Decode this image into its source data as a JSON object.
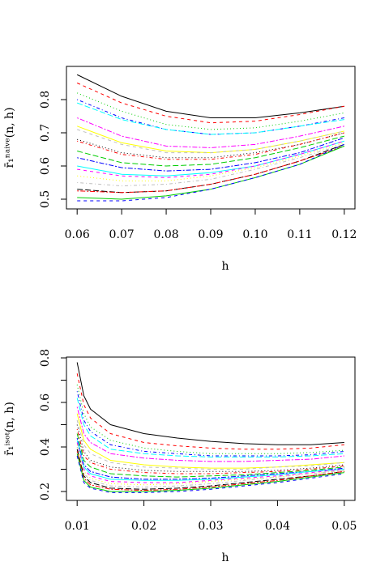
{
  "chart_data": [
    {
      "type": "line",
      "xlabel": "h",
      "ylabel": "r̄₁ⁿᵃⁱᵛᵉ(n, h)",
      "x": [
        0.06,
        0.07,
        0.08,
        0.09,
        0.1,
        0.11,
        0.12
      ],
      "xlim": [
        0.0576,
        0.1224
      ],
      "ylim": [
        0.4707,
        0.9
      ],
      "xticks": [
        0.06,
        0.07,
        0.08,
        0.09,
        {
          "value": 0.1,
          "label": "0.10"
        },
        0.11,
        0.12
      ],
      "yticks": [
        0.5,
        0.6,
        0.7,
        0.8
      ],
      "series": [
        {
          "color": "#000000",
          "dash": "solid",
          "values": [
            0.875,
            0.81,
            0.765,
            0.745,
            0.745,
            0.76,
            0.78
          ]
        },
        {
          "color": "#ff0000",
          "dash": "dashed",
          "values": [
            0.85,
            0.79,
            0.75,
            0.73,
            0.735,
            0.755,
            0.78
          ]
        },
        {
          "color": "#00cd00",
          "dash": "dotted",
          "values": [
            0.82,
            0.765,
            0.725,
            0.71,
            0.715,
            0.735,
            0.76
          ]
        },
        {
          "color": "#0000ff",
          "dash": "dotdash",
          "values": [
            0.8,
            0.745,
            0.71,
            0.695,
            0.7,
            0.72,
            0.745
          ]
        },
        {
          "color": "#00ffff",
          "dash": "longdash",
          "values": [
            0.79,
            0.74,
            0.71,
            0.695,
            0.7,
            0.72,
            0.74
          ]
        },
        {
          "color": "#ff00ff",
          "dash": "twodash",
          "values": [
            0.745,
            0.69,
            0.66,
            0.655,
            0.665,
            0.69,
            0.72
          ]
        },
        {
          "color": "#ffff00",
          "dash": "solid",
          "values": [
            0.72,
            0.67,
            0.645,
            0.64,
            0.65,
            0.675,
            0.705
          ]
        },
        {
          "color": "#bebebe",
          "dash": "dashed",
          "values": [
            0.71,
            0.665,
            0.64,
            0.64,
            0.65,
            0.675,
            0.705
          ]
        },
        {
          "color": "#000000",
          "dash": "dotted",
          "values": [
            0.68,
            0.64,
            0.625,
            0.625,
            0.64,
            0.665,
            0.7
          ]
        },
        {
          "color": "#ff0000",
          "dash": "dotdash",
          "values": [
            0.675,
            0.635,
            0.62,
            0.62,
            0.635,
            0.665,
            0.7
          ]
        },
        {
          "color": "#00cd00",
          "dash": "longdash",
          "values": [
            0.645,
            0.61,
            0.6,
            0.605,
            0.625,
            0.655,
            0.69
          ]
        },
        {
          "color": "#0000ff",
          "dash": "twodash",
          "values": [
            0.625,
            0.595,
            0.585,
            0.59,
            0.61,
            0.64,
            0.685
          ]
        },
        {
          "color": "#00ffff",
          "dash": "solid",
          "values": [
            0.6,
            0.575,
            0.57,
            0.58,
            0.6,
            0.635,
            0.675
          ]
        },
        {
          "color": "#ff00ff",
          "dash": "dashed",
          "values": [
            0.59,
            0.57,
            0.565,
            0.575,
            0.6,
            0.635,
            0.675
          ]
        },
        {
          "color": "#ffff00",
          "dash": "dotted",
          "values": [
            0.57,
            0.555,
            0.555,
            0.57,
            0.595,
            0.63,
            0.67
          ]
        },
        {
          "color": "#bebebe",
          "dash": "dotdash",
          "values": [
            0.55,
            0.54,
            0.545,
            0.56,
            0.59,
            0.625,
            0.665
          ]
        },
        {
          "color": "#000000",
          "dash": "longdash",
          "values": [
            0.53,
            0.52,
            0.525,
            0.545,
            0.575,
            0.615,
            0.665
          ]
        },
        {
          "color": "#ff0000",
          "dash": "twodash",
          "values": [
            0.525,
            0.52,
            0.525,
            0.545,
            0.575,
            0.615,
            0.66
          ]
        },
        {
          "color": "#00cd00",
          "dash": "solid",
          "values": [
            0.505,
            0.5,
            0.51,
            0.53,
            0.565,
            0.605,
            0.66
          ]
        },
        {
          "color": "#0000ff",
          "dash": "dashed",
          "values": [
            0.495,
            0.495,
            0.505,
            0.53,
            0.565,
            0.605,
            0.665
          ]
        }
      ]
    },
    {
      "type": "line",
      "xlabel": "h",
      "ylabel": "r̄₁ⁱˢᵒᵗ(n, h)",
      "x": [
        0.01,
        0.011,
        0.012,
        0.015,
        0.02,
        0.025,
        0.03,
        0.035,
        0.04,
        0.045,
        0.05
      ],
      "xlim": [
        0.0084,
        0.0516
      ],
      "ylim": [
        0.16,
        0.8036
      ],
      "xticks": [
        0.01,
        0.02,
        0.03,
        0.04,
        0.05
      ],
      "yticks": [
        0.2,
        {
          "value": 0.3,
          "label": null
        },
        0.4,
        {
          "value": 0.5,
          "label": null
        },
        0.6,
        {
          "value": 0.7,
          "label": null
        },
        0.8
      ],
      "series": [
        {
          "color": "#000000",
          "dash": "solid",
          "values": [
            0.78,
            0.63,
            0.57,
            0.5,
            0.46,
            0.44,
            0.425,
            0.415,
            0.41,
            0.41,
            0.42
          ]
        },
        {
          "color": "#ff0000",
          "dash": "dashed",
          "values": [
            0.73,
            0.59,
            0.53,
            0.46,
            0.42,
            0.405,
            0.395,
            0.39,
            0.39,
            0.395,
            0.41
          ]
        },
        {
          "color": "#00cd00",
          "dash": "dotted",
          "values": [
            0.68,
            0.55,
            0.49,
            0.43,
            0.395,
            0.38,
            0.37,
            0.37,
            0.37,
            0.375,
            0.385
          ]
        },
        {
          "color": "#0000ff",
          "dash": "dotdash",
          "values": [
            0.65,
            0.52,
            0.47,
            0.41,
            0.38,
            0.37,
            0.36,
            0.36,
            0.36,
            0.365,
            0.38
          ]
        },
        {
          "color": "#00ffff",
          "dash": "longdash",
          "values": [
            0.62,
            0.5,
            0.45,
            0.39,
            0.37,
            0.36,
            0.355,
            0.355,
            0.355,
            0.36,
            0.37
          ]
        },
        {
          "color": "#ff00ff",
          "dash": "twodash",
          "values": [
            0.58,
            0.46,
            0.42,
            0.37,
            0.35,
            0.34,
            0.335,
            0.335,
            0.34,
            0.345,
            0.36
          ]
        },
        {
          "color": "#ffff00",
          "dash": "solid",
          "values": [
            0.55,
            0.43,
            0.39,
            0.34,
            0.32,
            0.31,
            0.305,
            0.305,
            0.31,
            0.32,
            0.33
          ]
        },
        {
          "color": "#bebebe",
          "dash": "dashed",
          "values": [
            0.52,
            0.41,
            0.37,
            0.33,
            0.31,
            0.305,
            0.3,
            0.3,
            0.31,
            0.315,
            0.33
          ]
        },
        {
          "color": "#000000",
          "dash": "dotted",
          "values": [
            0.5,
            0.38,
            0.34,
            0.31,
            0.295,
            0.29,
            0.29,
            0.29,
            0.295,
            0.305,
            0.32
          ]
        },
        {
          "color": "#ff0000",
          "dash": "dotdash",
          "values": [
            0.48,
            0.36,
            0.33,
            0.3,
            0.285,
            0.28,
            0.28,
            0.285,
            0.29,
            0.3,
            0.315
          ]
        },
        {
          "color": "#00cd00",
          "dash": "longdash",
          "values": [
            0.46,
            0.34,
            0.31,
            0.28,
            0.27,
            0.265,
            0.27,
            0.275,
            0.285,
            0.295,
            0.31
          ]
        },
        {
          "color": "#0000ff",
          "dash": "twodash",
          "values": [
            0.44,
            0.32,
            0.29,
            0.265,
            0.255,
            0.255,
            0.26,
            0.27,
            0.28,
            0.29,
            0.305
          ]
        },
        {
          "color": "#00ffff",
          "dash": "solid",
          "values": [
            0.43,
            0.31,
            0.28,
            0.255,
            0.25,
            0.25,
            0.255,
            0.265,
            0.275,
            0.29,
            0.3
          ]
        },
        {
          "color": "#ff00ff",
          "dash": "dashed",
          "values": [
            0.42,
            0.3,
            0.27,
            0.245,
            0.24,
            0.24,
            0.25,
            0.26,
            0.27,
            0.285,
            0.3
          ]
        },
        {
          "color": "#ffff00",
          "dash": "dotted",
          "values": [
            0.41,
            0.29,
            0.26,
            0.235,
            0.23,
            0.235,
            0.245,
            0.255,
            0.265,
            0.28,
            0.295
          ]
        },
        {
          "color": "#bebebe",
          "dash": "dotdash",
          "values": [
            0.4,
            0.28,
            0.25,
            0.225,
            0.22,
            0.225,
            0.235,
            0.25,
            0.265,
            0.28,
            0.295
          ]
        },
        {
          "color": "#000000",
          "dash": "longdash",
          "values": [
            0.39,
            0.27,
            0.24,
            0.215,
            0.21,
            0.215,
            0.225,
            0.24,
            0.255,
            0.27,
            0.29
          ]
        },
        {
          "color": "#ff0000",
          "dash": "twodash",
          "values": [
            0.38,
            0.26,
            0.23,
            0.21,
            0.205,
            0.21,
            0.22,
            0.235,
            0.25,
            0.27,
            0.29
          ]
        },
        {
          "color": "#00cd00",
          "dash": "solid",
          "values": [
            0.37,
            0.25,
            0.22,
            0.2,
            0.2,
            0.205,
            0.215,
            0.23,
            0.245,
            0.265,
            0.285
          ]
        },
        {
          "color": "#0000ff",
          "dash": "dashed",
          "values": [
            0.36,
            0.24,
            0.215,
            0.195,
            0.195,
            0.2,
            0.21,
            0.225,
            0.24,
            0.26,
            0.28
          ]
        }
      ]
    }
  ]
}
